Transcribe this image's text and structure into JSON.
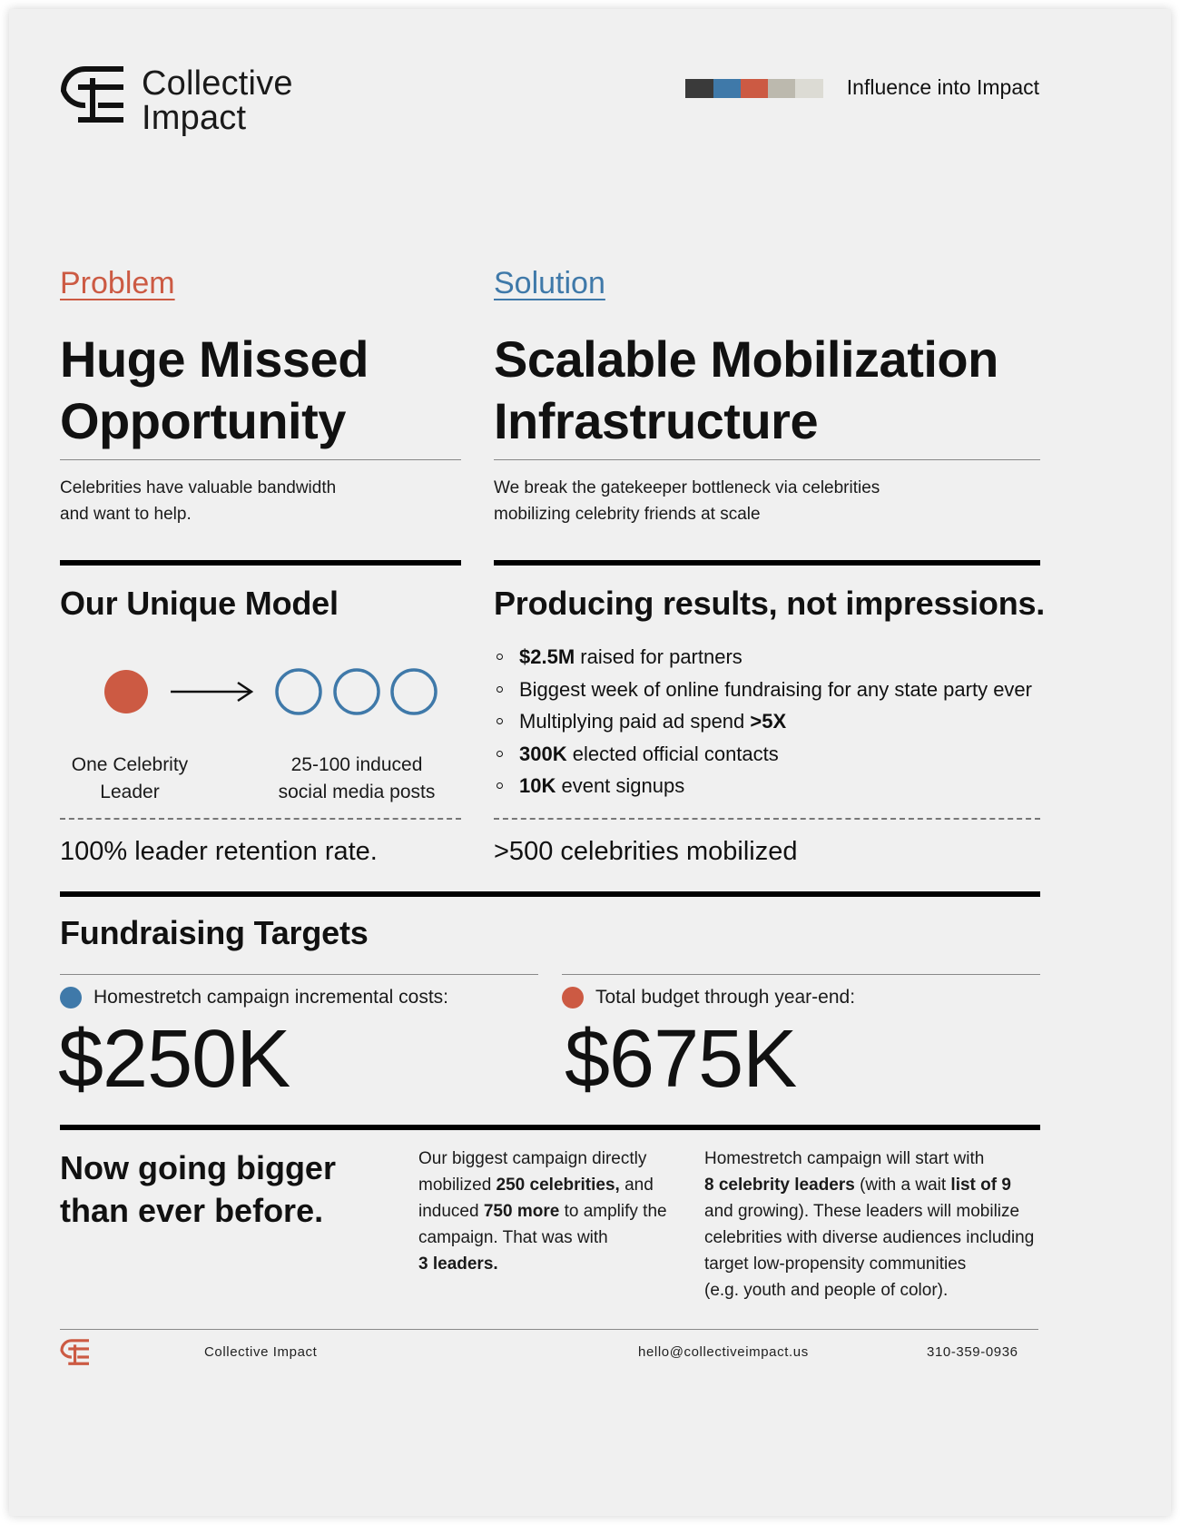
{
  "header": {
    "logo_line1": "Collective",
    "logo_line2": "Impact",
    "tagline": "Influence into Impact",
    "palette": [
      "#3a3a3a",
      "#3f79a9",
      "#cc5a43",
      "#bcb9ae",
      "#dcdbd4"
    ]
  },
  "problem": {
    "label": "Problem",
    "headline_line1": "Huge Missed",
    "headline_line2": "Opportunity",
    "blurb_line1": "Celebrities have valuable bandwidth",
    "blurb_line2": "and want to help."
  },
  "solution": {
    "label": "Solution",
    "headline_line1": "Scalable Mobilization",
    "headline_line2": "Infrastructure",
    "blurb_line1": "We break the gatekeeper bottleneck via celebrities",
    "blurb_line2": "mobilizing celebrity friends at scale"
  },
  "model": {
    "title": "Our Unique Model",
    "left_caption_line1": "One Celebrity",
    "left_caption_line2": "Leader",
    "right_caption_line1": "25-100 induced",
    "right_caption_line2": "social media posts",
    "stat": "100% leader retention rate."
  },
  "results": {
    "title": "Producing results, not impressions.",
    "bullets": [
      {
        "pre": "",
        "bold": "$2.5M",
        "post": " raised for partners"
      },
      {
        "pre": "Biggest week of online fundraising for any state party ever",
        "bold": "",
        "post": ""
      },
      {
        "pre": "Multiplying paid ad spend ",
        "bold": ">5X",
        "post": ""
      },
      {
        "pre": "",
        "bold": "300K",
        "post": " elected official contacts"
      },
      {
        "pre": "",
        "bold": "10K",
        "post": " event signups"
      }
    ],
    "stat": ">500 celebrities mobilized"
  },
  "targets": {
    "title": "Fundraising Targets",
    "left_label": "Homestretch campaign incremental costs:",
    "left_value": "$250K",
    "right_label": "Total budget through year-end:",
    "right_value": "$675K",
    "colors": {
      "blue": "#3f79a9",
      "red": "#cc5a43"
    }
  },
  "bigger": {
    "title_line1": "Now going bigger",
    "title_line2": "than ever before.",
    "mid": {
      "t1": "Our biggest campaign directly",
      "t2": "mobilized ",
      "b1": "250 celebrities,",
      "t3": " and",
      "t4": "induced ",
      "b2": "750 more",
      "t5": " to amplify the",
      "t6": "campaign. That was with",
      "b3": "3 leaders."
    },
    "right": {
      "t1": "Homestretch campaign will start with",
      "b1": "8 celebrity leaders",
      "t2": " (with a wait ",
      "b2": "list of 9",
      "t3": "and growing). These leaders will mobilize",
      "t4": "celebrities with diverse audiences including",
      "t5": "target low-propensity communities",
      "t6": "(e.g. youth and people of color)."
    }
  },
  "footer": {
    "name": "Collective Impact",
    "email": "hello@collectiveimpact.us",
    "phone": "310-359-0936"
  }
}
